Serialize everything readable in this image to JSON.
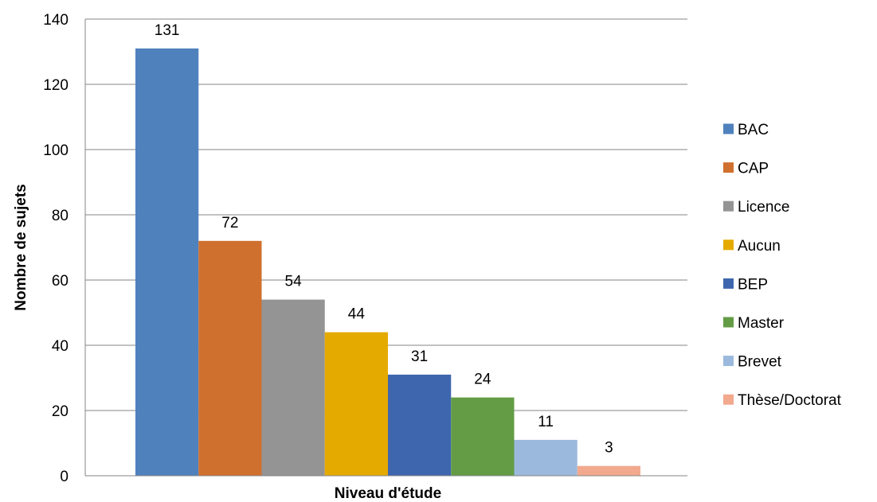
{
  "chart_data": {
    "type": "bar",
    "title": "",
    "xlabel": "Niveau d'étude",
    "ylabel": "Nombre de sujets",
    "ylim": [
      0,
      140
    ],
    "yticks": [
      0,
      20,
      40,
      60,
      80,
      100,
      120,
      140
    ],
    "grid": true,
    "legend_position": "right",
    "series": [
      {
        "name": "BAC",
        "value": 131,
        "color": "#4F81BD"
      },
      {
        "name": "CAP",
        "value": 72,
        "color": "#D0702E"
      },
      {
        "name": "Licence",
        "value": 54,
        "color": "#949494"
      },
      {
        "name": "Aucun",
        "value": 44,
        "color": "#E5AA00"
      },
      {
        "name": "BEP",
        "value": 31,
        "color": "#3E66AE"
      },
      {
        "name": "Master",
        "value": 24,
        "color": "#639C45"
      },
      {
        "name": "Brevet",
        "value": 11,
        "color": "#9BB9DD"
      },
      {
        "name": "Thèse/Doctorat",
        "value": 3,
        "color": "#F2A98E"
      }
    ]
  }
}
